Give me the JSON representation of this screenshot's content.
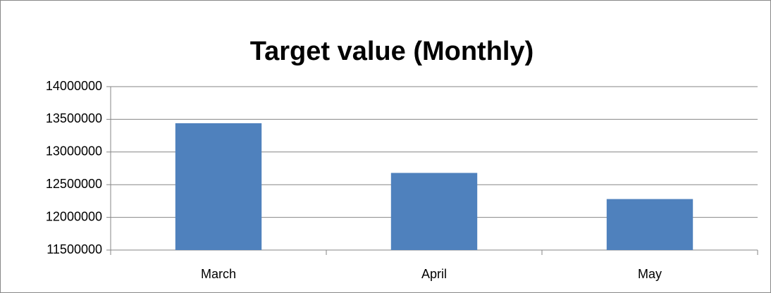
{
  "chart_data": {
    "type": "bar",
    "title": "Target value (Monthly)",
    "categories": [
      "March",
      "April",
      "May"
    ],
    "values": [
      13440000,
      12680000,
      12280000
    ],
    "color": "#4f81bd",
    "ylim": [
      11500000,
      14000000
    ],
    "yticks": [
      11500000,
      12000000,
      12500000,
      13000000,
      13500000,
      14000000
    ],
    "grid": true
  }
}
